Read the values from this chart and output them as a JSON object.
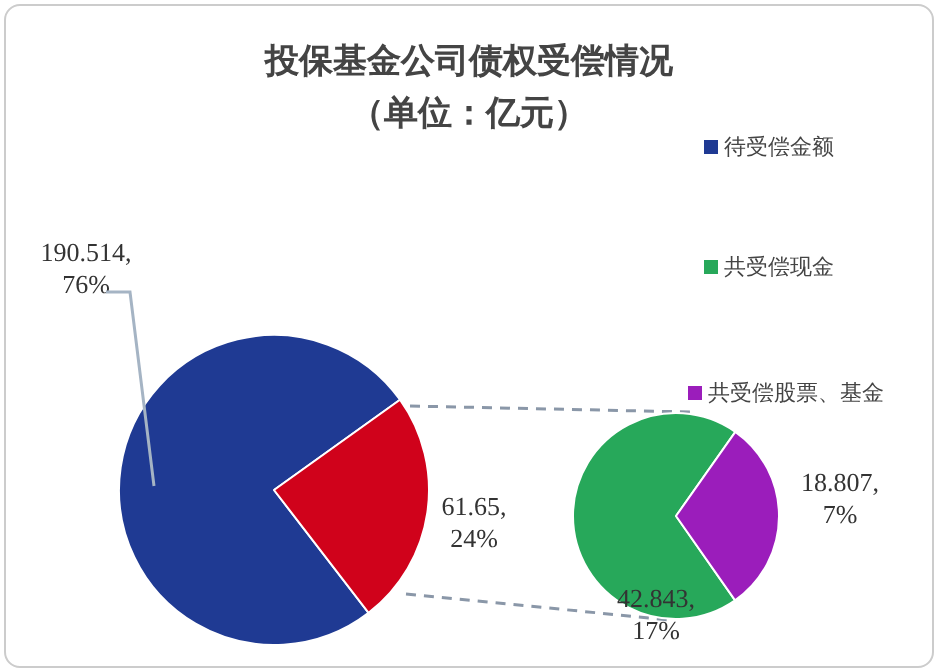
{
  "chart_data": [
    {
      "type": "pie",
      "title": "投保基金公司债权受偿情况",
      "subtitle": "（单位：亿元）",
      "categories": [
        "待受偿金额",
        null
      ],
      "values": [
        190.514,
        61.65
      ],
      "colors": [
        "#1f3a93",
        "#d0021b"
      ],
      "value_labels": [
        "190.514, 76%",
        "61.65, 24%"
      ],
      "legend": "right"
    },
    {
      "type": "pie",
      "categories": [
        "共受偿现金",
        "共受偿股票、基金"
      ],
      "values": [
        42.843,
        18.807
      ],
      "colors": [
        "#27a85a",
        "#9b1dbb"
      ],
      "value_labels": [
        "42.843, 17%",
        "18.807, 7%"
      ],
      "legend": "right"
    }
  ]
}
